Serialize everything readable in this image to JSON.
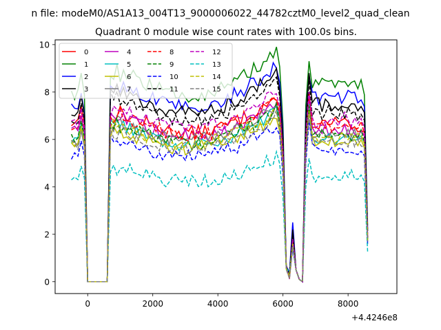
{
  "chart_data": {
    "type": "line",
    "suptitle": "n file: modeM0/AS1A13_004T13_9000006022_44782cztM0_level2_quad_clean",
    "title": "Quadrant 0 module wise count rates with 100.0s bins.",
    "xlabel": "",
    "ylabel": "",
    "x_offset_label": "+4.4246e8",
    "xlim": [
      -1000,
      9500
    ],
    "ylim": [
      -0.5,
      10.2
    ],
    "xticks": [
      0,
      2000,
      4000,
      6000,
      8000
    ],
    "xtick_labels": [
      "0",
      "2000",
      "4000",
      "6000",
      "8000"
    ],
    "yticks": [
      0,
      2,
      4,
      6,
      8,
      10
    ],
    "ytick_labels": [
      "0",
      "2",
      "4",
      "6",
      "8",
      "10"
    ],
    "grid": false,
    "legend": {
      "placement": "top-left",
      "columns": 4
    },
    "x": [
      -500,
      -400,
      -300,
      -200,
      -100,
      0,
      100,
      200,
      300,
      400,
      500,
      600,
      700,
      800,
      900,
      1000,
      1100,
      1200,
      1300,
      1400,
      1500,
      1600,
      1700,
      1800,
      1900,
      2000,
      2100,
      2200,
      2300,
      2400,
      2500,
      2600,
      2700,
      2800,
      2900,
      3000,
      3100,
      3200,
      3300,
      3400,
      3500,
      3600,
      3700,
      3800,
      3900,
      4000,
      4100,
      4200,
      4300,
      4400,
      4500,
      4600,
      4700,
      4800,
      4900,
      5000,
      5100,
      5200,
      5300,
      5400,
      5500,
      5600,
      5700,
      5800,
      5900,
      6000,
      6100,
      6200,
      6300,
      6400,
      6500,
      6600,
      6700,
      6800,
      6900,
      7000,
      7100,
      7200,
      7300,
      7400,
      7500,
      7600,
      7700,
      7800,
      7900,
      8000,
      8100,
      8200,
      8300,
      8400,
      8500,
      8600
    ],
    "series": [
      {
        "name": "0",
        "color": "#ff0000",
        "dash": "solid",
        "base": 7.0,
        "plateau": 7.6,
        "peak": 8.0,
        "sp": 1.7
      },
      {
        "name": "1",
        "color": "#008000",
        "dash": "solid",
        "base": 8.3,
        "plateau": 9.5,
        "peak": 9.3,
        "sp": 2.0
      },
      {
        "name": "2",
        "color": "#0000ff",
        "dash": "solid",
        "base": 7.5,
        "plateau": 8.9,
        "peak": 8.7,
        "sp": 2.5
      },
      {
        "name": "3",
        "color": "#000000",
        "dash": "solid",
        "base": 7.4,
        "plateau": 8.6,
        "peak": 8.8,
        "sp": 2.2
      },
      {
        "name": "4",
        "color": "#bf00bf",
        "dash": "solid",
        "base": 6.6,
        "plateau": 7.4,
        "peak": 7.8,
        "sp": 1.8
      },
      {
        "name": "5",
        "color": "#00bfbf",
        "dash": "solid",
        "base": 6.3,
        "plateau": 7.0,
        "peak": 7.5,
        "sp": 1.6
      },
      {
        "name": "6",
        "color": "#bfbf00",
        "dash": "solid",
        "base": 6.1,
        "plateau": 6.8,
        "peak": 7.3,
        "sp": 1.5
      },
      {
        "name": "7",
        "color": "#808080",
        "dash": "solid",
        "base": 6.0,
        "plateau": 7.2,
        "peak": 7.4,
        "sp": 1.6
      },
      {
        "name": "8",
        "color": "#ff0000",
        "dash": "dashed",
        "base": 6.8,
        "plateau": 7.5,
        "peak": 7.9,
        "sp": 1.7
      },
      {
        "name": "9",
        "color": "#008000",
        "dash": "dashed",
        "base": 6.4,
        "plateau": 7.1,
        "peak": 7.4,
        "sp": 1.6
      },
      {
        "name": "10",
        "color": "#0000ff",
        "dash": "dashed",
        "base": 5.6,
        "plateau": 6.4,
        "peak": 6.8,
        "sp": 1.4
      },
      {
        "name": "11",
        "color": "#000000",
        "dash": "dashed",
        "base": 7.1,
        "plateau": 8.2,
        "peak": 8.5,
        "sp": 2.1
      },
      {
        "name": "12",
        "color": "#bf00bf",
        "dash": "dashed",
        "base": 6.9,
        "plateau": 7.8,
        "peak": 8.0,
        "sp": 1.8
      },
      {
        "name": "13",
        "color": "#00bfbf",
        "dash": "dashed",
        "base": 4.6,
        "plateau": 5.1,
        "peak": 5.2,
        "sp": 1.5
      },
      {
        "name": "14",
        "color": "#bfbf00",
        "dash": "dashed",
        "base": 6.2,
        "plateau": 7.0,
        "peak": 7.2,
        "sp": 1.6
      },
      {
        "name": "15",
        "color": "#808080",
        "dash": "dashed",
        "base": 6.0,
        "plateau": 6.8,
        "peak": 7.0,
        "sp": 1.5
      }
    ]
  }
}
